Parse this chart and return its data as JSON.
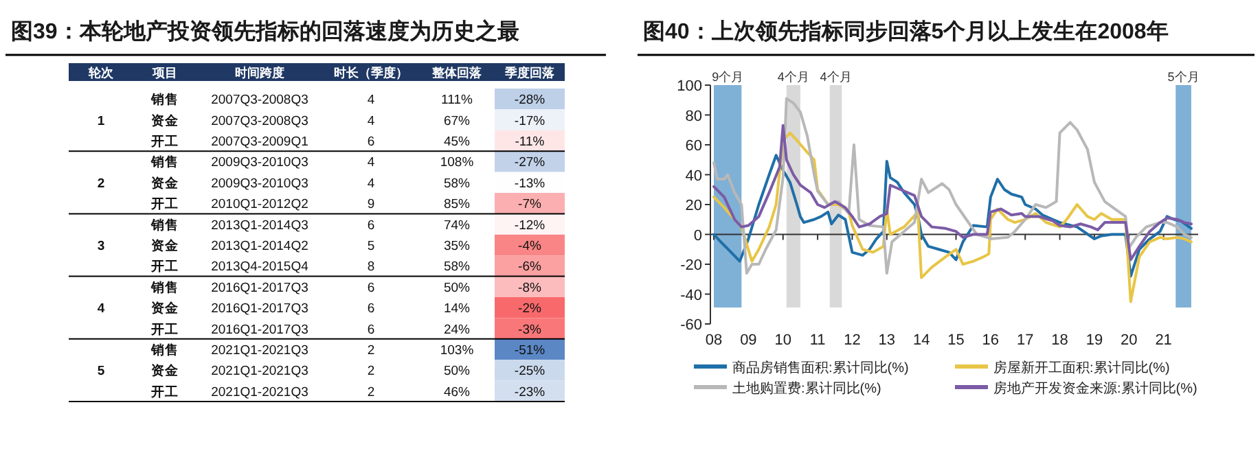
{
  "chart_data": [
    {
      "type": "heatmap",
      "title": "图39：本轮地产投资领先指标的回落速度为历史之最",
      "ylabel": "轮次",
      "categories": [
        "项目",
        "时间跨度",
        "时长（季度）",
        "整体回落",
        "季度回落"
      ],
      "y_categories": [
        null,
        "1",
        null,
        null,
        "2",
        null,
        null,
        "3",
        null,
        null,
        "4",
        null,
        null,
        "5",
        null
      ],
      "cells": [
        [
          null,
          null,
          null,
          null,
          -28
        ],
        [
          null,
          null,
          null,
          null,
          -17
        ],
        [
          null,
          null,
          null,
          null,
          -11
        ],
        [
          null,
          null,
          null,
          null,
          -27
        ],
        [
          null,
          null,
          null,
          null,
          -13
        ],
        [
          null,
          null,
          null,
          null,
          -7
        ],
        [
          null,
          null,
          null,
          null,
          -12
        ],
        [
          null,
          null,
          null,
          null,
          -4
        ],
        [
          null,
          null,
          null,
          null,
          -6
        ],
        [
          null,
          null,
          null,
          null,
          -8
        ],
        [
          null,
          null,
          null,
          null,
          -2
        ],
        [
          null,
          null,
          null,
          null,
          -3
        ],
        [
          null,
          null,
          null,
          null,
          -51
        ],
        [
          null,
          null,
          null,
          null,
          -25
        ],
        [
          null,
          null,
          null,
          null,
          -23
        ]
      ],
      "cell_labels": [
        [
          "销售",
          "2007Q3-2008Q3",
          "4",
          "111%",
          "-28%"
        ],
        [
          "资金",
          "2007Q3-2008Q3",
          "4",
          "67%",
          "-17%"
        ],
        [
          "开工",
          "2007Q3-2009Q1",
          "6",
          "45%",
          "-11%"
        ],
        [
          "销售",
          "2009Q3-2010Q3",
          "4",
          "108%",
          "-27%"
        ],
        [
          "资金",
          "2009Q3-2010Q3",
          "4",
          "58%",
          "-13%"
        ],
        [
          "开工",
          "2010Q1-2012Q2",
          "9",
          "85%",
          "-7%"
        ],
        [
          "销售",
          "2013Q1-2014Q3",
          "6",
          "74%",
          "-12%"
        ],
        [
          "资金",
          "2013Q1-2014Q2",
          "5",
          "35%",
          "-4%"
        ],
        [
          "开工",
          "2013Q4-2015Q4",
          "8",
          "58%",
          "-6%"
        ],
        [
          "销售",
          "2016Q1-2017Q3",
          "6",
          "50%",
          "-8%"
        ],
        [
          "资金",
          "2016Q1-2017Q3",
          "6",
          "14%",
          "-2%"
        ],
        [
          "开工",
          "2016Q1-2017Q3",
          "6",
          "24%",
          "-3%"
        ],
        [
          "销售",
          "2021Q1-2021Q3",
          "2",
          "103%",
          "-51%"
        ],
        [
          "资金",
          "2021Q1-2021Q3",
          "2",
          "50%",
          "-25%"
        ],
        [
          "开工",
          "2021Q1-2021Q3",
          "2",
          "46%",
          "-23%"
        ]
      ]
    },
    {
      "type": "line",
      "title": "图40：上次领先指标同步回落5个月以上发生在2008年",
      "xlim": [
        2007.9,
        2022.0
      ],
      "xticks": [
        {
          "value": 2008,
          "label": "08"
        },
        {
          "value": 2009,
          "label": "09"
        },
        {
          "value": 2010,
          "label": "10"
        },
        {
          "value": 2011,
          "label": "11"
        },
        {
          "value": 2012,
          "label": "12"
        },
        {
          "value": 2013,
          "label": "13"
        },
        {
          "value": 2014,
          "label": "14"
        },
        {
          "value": 2015,
          "label": "15"
        },
        {
          "value": 2016,
          "label": "16"
        },
        {
          "value": 2017,
          "label": "17"
        },
        {
          "value": 2018,
          "label": "18"
        },
        {
          "value": 2019,
          "label": "19"
        },
        {
          "value": 2020,
          "label": "20"
        },
        {
          "value": 2021,
          "label": "21"
        }
      ],
      "ylim": [
        -60,
        100
      ],
      "yticks": [
        -60,
        -40,
        -20,
        0,
        20,
        40,
        60,
        80,
        100
      ],
      "legend": "bottom",
      "line_style": "solid",
      "marker": "none",
      "bands": [
        {
          "axis": "x",
          "from": 2008.0,
          "to": 2008.8,
          "label": "9个月",
          "color": "#7fb0d6"
        },
        {
          "axis": "x",
          "from": 2010.1,
          "to": 2010.5,
          "label": "4个月",
          "color": "#d9d9d9"
        },
        {
          "axis": "x",
          "from": 2011.35,
          "to": 2011.7,
          "label": "4个月",
          "color": "#d9d9d9"
        },
        {
          "axis": "x",
          "from": 2021.35,
          "to": 2021.8,
          "label": "5个月",
          "color": "#7fb0d6"
        }
      ],
      "series": [
        {
          "name": "商品房销售面积:累计同比(%)",
          "color": "#1f6fa8",
          "x": [
            2008.0,
            2008.2,
            2008.5,
            2008.75,
            2008.85,
            2009.0,
            2009.3,
            2009.6,
            2009.8,
            2009.9,
            2010.0,
            2010.2,
            2010.4,
            2010.5,
            2010.6,
            2010.9,
            2011.1,
            2011.3,
            2011.4,
            2011.6,
            2011.8,
            2012.0,
            2012.3,
            2012.5,
            2012.7,
            2012.9,
            2013.0,
            2013.1,
            2013.3,
            2013.5,
            2013.8,
            2013.9,
            2014.0,
            2014.2,
            2014.5,
            2014.8,
            2015.0,
            2015.2,
            2015.5,
            2015.9,
            2016.0,
            2016.2,
            2016.4,
            2016.6,
            2016.9,
            2017.0,
            2017.3,
            2017.5,
            2017.8,
            2018.0,
            2018.5,
            2019.0,
            2019.2,
            2019.5,
            2019.9,
            2020.05,
            2020.3,
            2020.6,
            2020.9,
            2021.1,
            2021.3,
            2021.5,
            2021.8
          ],
          "values": [
            0,
            -5,
            -12,
            -18,
            -12,
            -3,
            20,
            40,
            53,
            48,
            43,
            35,
            20,
            12,
            8,
            10,
            12,
            15,
            7,
            13,
            10,
            -12,
            -14,
            -10,
            -3,
            2,
            49,
            38,
            35,
            28,
            20,
            12,
            0,
            -8,
            -10,
            -12,
            -17,
            -5,
            6,
            5,
            25,
            37,
            30,
            27,
            25,
            20,
            17,
            13,
            10,
            8,
            5,
            -3,
            -1,
            0,
            0,
            -28,
            -10,
            -3,
            2,
            12,
            10,
            9,
            4
          ]
        },
        {
          "name": "房屋新开工面积:累计同比(%)",
          "color": "#e8c547",
          "x": [
            2008.0,
            2008.3,
            2008.6,
            2008.8,
            2009.1,
            2009.3,
            2009.6,
            2009.8,
            2010.0,
            2010.2,
            2010.4,
            2010.7,
            2010.9,
            2011.0,
            2011.3,
            2011.6,
            2011.9,
            2012.0,
            2012.3,
            2012.6,
            2012.9,
            2013.0,
            2013.1,
            2013.5,
            2013.9,
            2014.0,
            2014.3,
            2014.7,
            2015.0,
            2015.2,
            2015.5,
            2015.8,
            2015.95,
            2016.0,
            2016.2,
            2016.5,
            2016.7,
            2017.0,
            2017.3,
            2017.6,
            2018.0,
            2018.2,
            2018.5,
            2018.8,
            2019.0,
            2019.2,
            2019.5,
            2019.9,
            2020.05,
            2020.3,
            2020.6,
            2020.9,
            2021.1,
            2021.4,
            2021.6,
            2021.8
          ],
          "values": [
            25,
            18,
            10,
            5,
            -18,
            -10,
            5,
            20,
            63,
            68,
            63,
            55,
            50,
            30,
            20,
            20,
            15,
            6,
            -10,
            -12,
            -8,
            17,
            0,
            5,
            15,
            -29,
            -22,
            -15,
            -10,
            -20,
            -18,
            -15,
            -13,
            10,
            17,
            10,
            8,
            10,
            14,
            8,
            5,
            10,
            20,
            12,
            10,
            14,
            10,
            10,
            -45,
            -15,
            -5,
            -2,
            -3,
            -2,
            -3,
            -5
          ]
        },
        {
          "name": "土地购置费:累计同比(%)",
          "color": "#b8b8b8",
          "x": [
            2008.0,
            2008.1,
            2008.3,
            2008.4,
            2008.6,
            2008.75,
            2008.8,
            2008.95,
            2009.1,
            2009.3,
            2009.5,
            2009.8,
            2010.0,
            2010.1,
            2010.3,
            2010.5,
            2010.7,
            2010.9,
            2011.0,
            2011.3,
            2011.6,
            2011.9,
            2012.05,
            2012.2,
            2012.5,
            2012.9,
            2013.0,
            2013.15,
            2013.4,
            2013.8,
            2014.0,
            2014.2,
            2014.6,
            2014.8,
            2015.0,
            2015.3,
            2015.6,
            2015.9,
            2016.0,
            2016.5,
            2016.7,
            2017.0,
            2017.3,
            2017.6,
            2017.9,
            2018.0,
            2018.3,
            2018.5,
            2018.8,
            2019.0,
            2019.3,
            2019.6,
            2019.9,
            2020.0,
            2020.2,
            2020.5,
            2020.9,
            2021.1,
            2021.4,
            2021.6,
            2021.8
          ],
          "values": [
            48,
            37,
            37,
            40,
            28,
            22,
            20,
            -26,
            -20,
            -20,
            -10,
            3,
            38,
            91,
            88,
            82,
            66,
            40,
            29,
            20,
            22,
            14,
            60,
            10,
            6,
            5,
            -26,
            -5,
            0,
            8,
            37,
            28,
            34,
            30,
            20,
            10,
            0,
            -2,
            -3,
            -2,
            2,
            10,
            20,
            18,
            22,
            68,
            75,
            70,
            57,
            35,
            22,
            17,
            12,
            -9,
            -2,
            5,
            8,
            8,
            5,
            0,
            -2
          ]
        },
        {
          "name": "房地产开发资金来源:累计同比(%)",
          "color": "#7b5ba6",
          "x": [
            2008.0,
            2008.3,
            2008.6,
            2008.8,
            2009.0,
            2009.3,
            2009.6,
            2009.9,
            2010.0,
            2010.1,
            2010.3,
            2010.5,
            2010.8,
            2011.0,
            2011.2,
            2011.5,
            2011.8,
            2012.0,
            2012.2,
            2012.5,
            2012.8,
            2013.0,
            2013.1,
            2013.4,
            2013.8,
            2014.0,
            2014.3,
            2014.7,
            2015.0,
            2015.2,
            2015.5,
            2015.9,
            2016.0,
            2016.3,
            2016.6,
            2016.9,
            2017.0,
            2017.4,
            2017.8,
            2018.0,
            2018.3,
            2018.6,
            2018.9,
            2019.1,
            2019.3,
            2019.9,
            2020.05,
            2020.3,
            2020.6,
            2020.9,
            2021.1,
            2021.4,
            2021.6,
            2021.8
          ],
          "values": [
            32,
            25,
            10,
            5,
            6,
            12,
            28,
            45,
            73,
            50,
            40,
            33,
            28,
            20,
            18,
            22,
            18,
            12,
            5,
            7,
            12,
            14,
            33,
            30,
            26,
            12,
            5,
            4,
            2,
            -2,
            0,
            0,
            15,
            17,
            13,
            14,
            12,
            12,
            9,
            6,
            5,
            7,
            5,
            3,
            8,
            8,
            -17,
            -8,
            2,
            8,
            11,
            10,
            8,
            7
          ]
        }
      ]
    }
  ]
}
